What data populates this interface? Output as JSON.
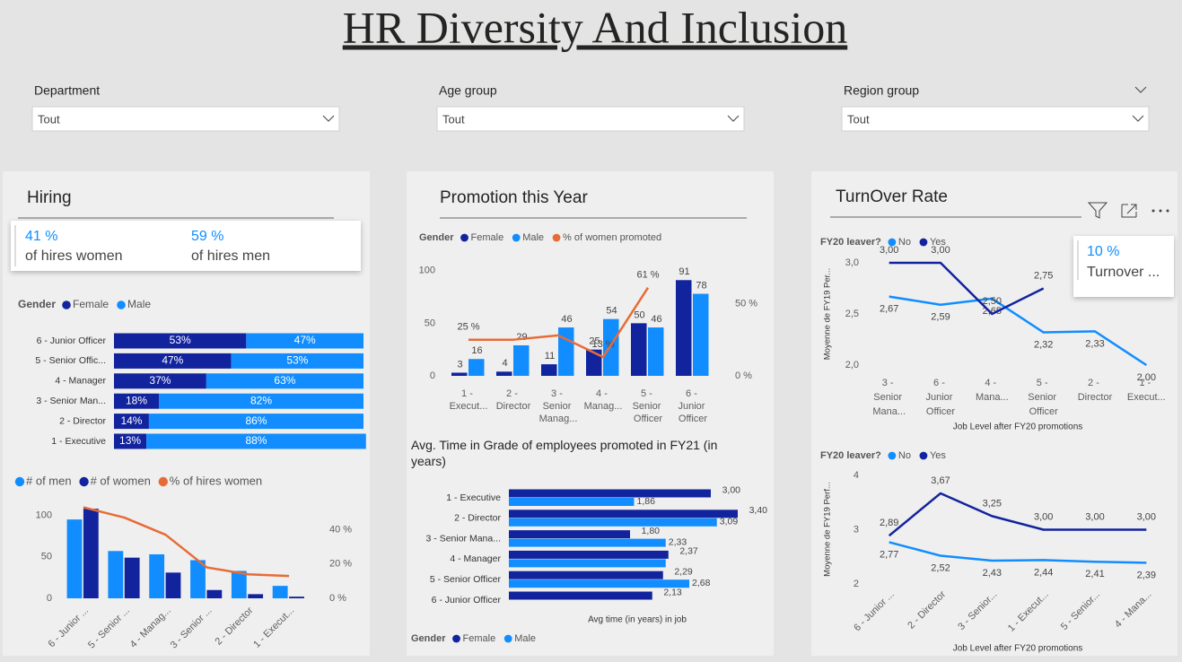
{
  "title": "HR Diversity And Inclusion",
  "filters": [
    {
      "label": "Department",
      "value": "Tout"
    },
    {
      "label": "Age group",
      "value": "Tout"
    },
    {
      "label": "Region group",
      "value": "Tout"
    }
  ],
  "hiring": {
    "title": "Hiring",
    "kpis": [
      {
        "value": "41 %",
        "label": "of hires women"
      },
      {
        "value": "59 %",
        "label": "of hires men"
      }
    ],
    "gender_chart": {
      "type": "bar",
      "orientation": "horizontal",
      "stacked": true,
      "legend_title": "Gender",
      "categories": [
        "6 - Junior Officer",
        "5 - Senior Offic...",
        "4 - Manager",
        "3 - Senior Man...",
        "2 - Director",
        "1 - Executive"
      ],
      "series": [
        {
          "name": "Female",
          "color": "#12239e",
          "values": [
            53,
            47,
            37,
            18,
            14,
            13
          ],
          "value_labels": [
            "53%",
            "47%",
            "37%",
            "18%",
            "14%",
            "13%"
          ]
        },
        {
          "name": "Male",
          "color": "#118dff",
          "values": [
            47,
            53,
            63,
            82,
            86,
            88
          ],
          "value_labels": [
            "47%",
            "53%",
            "63%",
            "82%",
            "86%",
            "88%"
          ]
        }
      ],
      "xlim": [
        0,
        100
      ]
    },
    "hires_chart": {
      "type": "bar",
      "categories": [
        "6 - Junior ...",
        "5 - Senior ...",
        "4 - Manag...",
        "3 - Senior ...",
        "2 - Director",
        "1 - Execut..."
      ],
      "series": [
        {
          "name": "# of men",
          "color": "#118dff",
          "values": [
            95,
            57,
            53,
            46,
            33,
            15
          ]
        },
        {
          "name": "# of women",
          "color": "#12239e",
          "values": [
            108,
            49,
            31,
            10,
            5,
            2
          ]
        },
        {
          "name": "% of hires women",
          "type": "line",
          "axis": "y2",
          "color": "#e66c37",
          "values": [
            53,
            47,
            37,
            18,
            14,
            13
          ]
        }
      ],
      "ylim": [
        0,
        120
      ],
      "yticks": [
        0,
        50,
        100
      ],
      "y2lim": [
        0,
        58
      ],
      "y2ticks": [
        {
          "value": 0,
          "label": "0 %"
        },
        {
          "value": 20,
          "label": "20 %"
        },
        {
          "value": 40,
          "label": "40 %"
        }
      ]
    }
  },
  "promotion": {
    "title": "Promotion this Year",
    "promo_chart": {
      "type": "bar",
      "legend_title": "Gender",
      "categories": [
        "1 - Execut...",
        "2 - Director",
        "3 - Senior Manag...",
        "4 - Manag...",
        "5 - Senior Officer",
        "6 - Junior Officer"
      ],
      "series": [
        {
          "name": "Female",
          "color": "#12239e",
          "values": [
            3,
            4,
            11,
            25,
            50,
            91
          ]
        },
        {
          "name": "Male",
          "color": "#118dff",
          "values": [
            16,
            29,
            46,
            54,
            46,
            78
          ]
        },
        {
          "name": "% of women promoted",
          "type": "line",
          "axis": "y2",
          "color": "#e66c37",
          "values": [
            25,
            25,
            28,
            13,
            61,
            null
          ],
          "value_labels": [
            "25 %",
            null,
            null,
            "13 %",
            "61 %",
            null
          ]
        }
      ],
      "ylim": [
        0,
        110
      ],
      "yticks": [
        0,
        50,
        100
      ],
      "y2lim": [
        0,
        80
      ],
      "y2ticks": [
        {
          "value": 0,
          "label": "0 %"
        },
        {
          "value": 50,
          "label": "50 %"
        }
      ]
    },
    "time_chart": {
      "type": "bar",
      "orientation": "horizontal",
      "title": "Avg. Time in Grade of employees promoted in FY21 (in years)",
      "x_label": "Avg time (in years) in job",
      "legend_title": "Gender",
      "categories": [
        "1 - Executive",
        "2 - Director",
        "3 - Senior Mana...",
        "4 - Manager",
        "5 - Senior Officer",
        "6 - Junior Officer"
      ],
      "series": [
        {
          "name": "Female",
          "color": "#12239e",
          "values": [
            3.0,
            3.4,
            1.8,
            2.37,
            2.29,
            2.13
          ],
          "value_labels": [
            "3,00",
            "3,40",
            "1,80",
            "2,37",
            "2,29",
            "2,13"
          ]
        },
        {
          "name": "Male",
          "color": "#118dff",
          "values": [
            1.86,
            3.09,
            2.33,
            2.33,
            2.68,
            null
          ],
          "value_labels": [
            "1,86",
            "3,09",
            "2,33",
            null,
            "2,68",
            null
          ]
        }
      ]
    }
  },
  "turnover": {
    "title": "TurnOver Rate",
    "kpi": {
      "value": "10 %",
      "label": "Turnover ..."
    },
    "charts": [
      {
        "type": "line",
        "legend_title": "FY20 leaver?",
        "y_label": "Moyenne de FY19 Per...",
        "x_label": "Job Level after FY20 promotions",
        "categories": [
          "3 - Senior Mana...",
          "6 - Junior Officer",
          "4 - Mana...",
          "5 - Senior Officer",
          "2 - Director",
          "1 - Execut..."
        ],
        "series": [
          {
            "name": "No",
            "color": "#118dff",
            "values": [
              2.67,
              2.59,
              2.65,
              2.32,
              2.33,
              2.0
            ],
            "value_labels": [
              "2,67",
              "2,59",
              "2,65",
              "2,32",
              "2,33",
              "2,00"
            ]
          },
          {
            "name": "Yes",
            "color": "#12239e",
            "values": [
              3.0,
              3.0,
              2.5,
              2.75,
              null,
              null
            ],
            "value_labels": [
              "3,00",
              "3,00",
              "2,50",
              "2,75",
              null,
              null
            ]
          }
        ],
        "ylim": [
          2,
          3
        ],
        "yticks": [
          {
            "value": 2,
            "label": "2,0"
          },
          {
            "value": 2.5,
            "label": "2,5"
          },
          {
            "value": 3,
            "label": "3,0"
          }
        ]
      },
      {
        "type": "line",
        "legend_title": "FY20 leaver?",
        "y_label": "Moyenne de FY19 Perf...",
        "x_label": "Job Level after FY20 promotions",
        "categories": [
          "6 - Junior ...",
          "2 - Director",
          "3 - Senior...",
          "1 - Execut...",
          "5 - Senior...",
          "4 - Mana..."
        ],
        "series": [
          {
            "name": "No",
            "color": "#118dff",
            "values": [
              2.77,
              2.52,
              2.43,
              2.44,
              2.41,
              2.39
            ],
            "value_labels": [
              "2,77",
              "2,52",
              "2,43",
              "2,44",
              "2,41",
              "2,39"
            ]
          },
          {
            "name": "Yes",
            "color": "#12239e",
            "values": [
              2.89,
              3.67,
              3.25,
              3.0,
              3.0,
              3.0
            ],
            "value_labels": [
              "2,89",
              "3,67",
              "3,25",
              "3,00",
              "3,00",
              "3,00"
            ]
          }
        ],
        "ylim": [
          2,
          4
        ],
        "yticks": [
          2,
          3,
          4
        ]
      }
    ]
  }
}
